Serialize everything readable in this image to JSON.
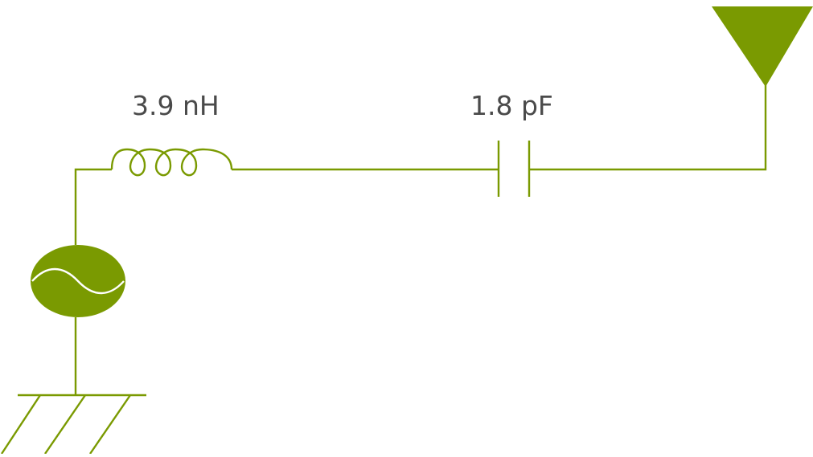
{
  "colors": {
    "accent": "#7a9a01",
    "text": "#4a4a4a",
    "background": "#ffffff"
  },
  "components": {
    "inductor": {
      "label": "3.9 nH",
      "icon": "inductor-icon"
    },
    "capacitor": {
      "label": "1.8 pF",
      "icon": "capacitor-icon"
    },
    "source": {
      "icon": "ac-source-icon"
    },
    "ground": {
      "icon": "ground-icon"
    },
    "antenna": {
      "icon": "antenna-icon"
    }
  }
}
